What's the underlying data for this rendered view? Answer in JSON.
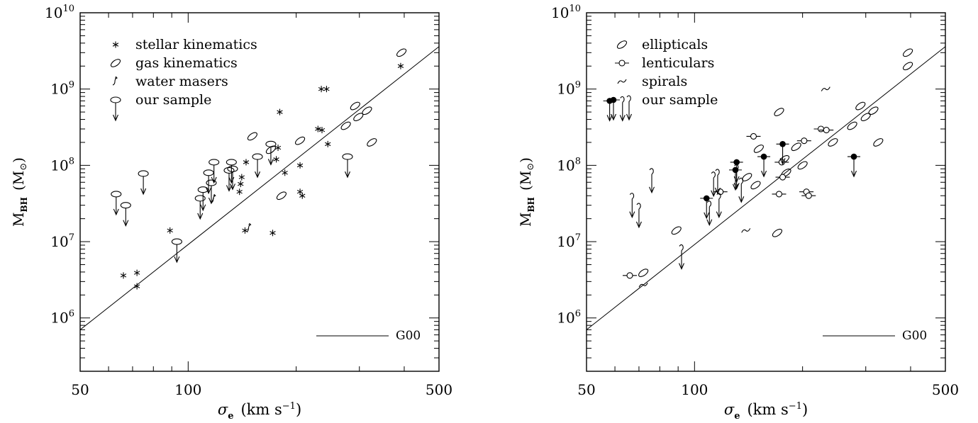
{
  "chart_data": [
    {
      "type": "scatter",
      "xlabel": {
        "symbol": "σ",
        "sub": "e",
        "unit": "(km s",
        "sup": "−1",
        "close": ")"
      },
      "ylabel": {
        "main": "M",
        "sub": "BH",
        "unit": "(M",
        "sun": "⊙",
        "close": ")"
      },
      "x_scale": "log",
      "y_scale": "log",
      "xlim": [
        50,
        500
      ],
      "ylim": [
        200000,
        10000000000
      ],
      "x_tick_labels": [
        "50",
        "100",
        "500"
      ],
      "y_tick_labels": [
        {
          "base": "10",
          "exp": "6",
          "value": 1000000
        },
        {
          "base": "10",
          "exp": "7",
          "value": 10000000
        },
        {
          "base": "10",
          "exp": "8",
          "value": 100000000
        },
        {
          "base": "10",
          "exp": "9",
          "value": 1000000000
        },
        {
          "base": "10",
          "exp": "10",
          "value": 10000000000
        }
      ],
      "fit_line": {
        "label": "G00",
        "x": [
          50,
          500
        ],
        "y": [
          700000,
          3600000000
        ]
      },
      "legend": {
        "placement": "top-left",
        "entries": [
          {
            "marker": "star",
            "label": "stellar kinematics"
          },
          {
            "marker": "ellipse",
            "label": "gas kinematics"
          },
          {
            "marker": "maser",
            "label": "water masers"
          },
          {
            "marker": "upper-limit",
            "label": "our sample"
          }
        ]
      },
      "series": [
        {
          "marker": "star",
          "points": [
            [
              66,
              3600000
            ],
            [
              72,
              3900000
            ],
            [
              72,
              2600000
            ],
            [
              89,
              14000000
            ],
            [
              144,
              14000000
            ],
            [
              172,
              13000000
            ],
            [
              139,
              45000000
            ],
            [
              140,
              57000000
            ],
            [
              141,
              70000000
            ],
            [
              145,
              110000000
            ],
            [
              176,
              120000000
            ],
            [
              178,
              170000000
            ],
            [
              180,
              500000000
            ],
            [
              186,
              80000000
            ],
            [
              205,
              100000000
            ],
            [
              205,
              45000000
            ],
            [
              208,
              40000000
            ],
            [
              230,
              300000000
            ],
            [
              236,
              290000000
            ],
            [
              235,
              1000000000
            ],
            [
              243,
              1000000000
            ],
            [
              245,
              190000000
            ],
            [
              391,
              2000000000
            ]
          ]
        },
        {
          "marker": "ellipse",
          "points": [
            [
              151,
              240000000
            ],
            [
              205,
              210000000
            ],
            [
              170,
              160000000
            ],
            [
              182,
              40000000
            ],
            [
              275,
              330000000
            ],
            [
              292,
              600000000
            ],
            [
              298,
              430000000
            ],
            [
              315,
              520000000
            ],
            [
              325,
              200000000
            ],
            [
              393,
              3000000000
            ]
          ]
        },
        {
          "marker": "maser",
          "points": [
            [
              148,
              15000000
            ],
            [
              118,
              36000000
            ]
          ]
        },
        {
          "marker": "upper-limit",
          "points": [
            [
              63,
              42000000
            ],
            [
              67,
              30000000
            ],
            [
              75,
              78000000
            ],
            [
              93,
              10000000
            ],
            [
              108,
              37000000
            ],
            [
              110,
              48000000
            ],
            [
              114,
              80000000
            ],
            [
              116,
              59000000
            ],
            [
              118,
              110000000
            ],
            [
              130,
              86000000
            ],
            [
              132,
              110000000
            ],
            [
              133,
              90000000
            ],
            [
              156,
              130000000
            ],
            [
              170,
              190000000
            ],
            [
              278,
              130000000
            ]
          ]
        }
      ]
    },
    {
      "type": "scatter",
      "xlabel": {
        "symbol": "σ",
        "sub": "e",
        "unit": "(km s",
        "sup": "−1",
        "close": ")"
      },
      "ylabel": {
        "main": "M",
        "sub": "BH",
        "unit": "(M",
        "sun": "⊙",
        "close": ")"
      },
      "x_scale": "log",
      "y_scale": "log",
      "xlim": [
        50,
        500
      ],
      "ylim": [
        200000,
        10000000000
      ],
      "x_tick_labels": [
        "50",
        "100",
        "500"
      ],
      "y_tick_labels": [
        {
          "base": "10",
          "exp": "6",
          "value": 1000000
        },
        {
          "base": "10",
          "exp": "7",
          "value": 10000000
        },
        {
          "base": "10",
          "exp": "8",
          "value": 100000000
        },
        {
          "base": "10",
          "exp": "9",
          "value": 1000000000
        },
        {
          "base": "10",
          "exp": "10",
          "value": 10000000000
        }
      ],
      "fit_line": {
        "label": "G00",
        "x": [
          50,
          500
        ],
        "y": [
          700000,
          3600000000
        ]
      },
      "legend": {
        "placement": "top-left",
        "entries": [
          {
            "marker": "ellipse",
            "label": "ellipticals"
          },
          {
            "marker": "circle-bar",
            "label": "lenticulars"
          },
          {
            "marker": "spiral",
            "label": "spirals"
          },
          {
            "marker": "upper-limit-pair",
            "label": "our sample"
          }
        ]
      },
      "series": [
        {
          "marker": "ellipse",
          "points": [
            [
              89,
              14000000
            ],
            [
              72,
              3900000
            ],
            [
              151,
              165000000
            ],
            [
              172,
              500000000
            ],
            [
              178,
              120000000
            ],
            [
              180,
              80000000
            ],
            [
              192,
              175000000
            ],
            [
              170,
              13000000
            ],
            [
              243,
              200000000
            ],
            [
              275,
              330000000
            ],
            [
              290,
              600000000
            ],
            [
              300,
              430000000
            ],
            [
              315,
              520000000
            ],
            [
              325,
              200000000
            ],
            [
              393,
              3000000000
            ],
            [
              393,
              2000000000
            ],
            [
              200,
              100000000
            ],
            [
              140,
              70000000
            ],
            [
              148,
              55000000
            ]
          ]
        },
        {
          "marker": "circle-bar",
          "points": [
            [
              66,
              3600000
            ],
            [
              118,
              45000000
            ],
            [
              146,
              240000000
            ],
            [
              172,
              42000000
            ],
            [
              202,
              210000000
            ],
            [
              205,
              45000000
            ],
            [
              208,
              40000000
            ],
            [
              225,
              300000000
            ],
            [
              233,
              290000000
            ],
            [
              175,
              110000000
            ],
            [
              176,
              70000000
            ]
          ]
        },
        {
          "marker": "spiral",
          "points": [
            [
              139,
              14000000
            ],
            [
              232,
              1000000000
            ],
            [
              72,
              2700000
            ]
          ]
        },
        {
          "marker": "upper-limit-filled",
          "points": [
            [
              58,
              700000000
            ],
            [
              108,
              37000000
            ],
            [
              130,
              87000000
            ],
            [
              131,
              110000000
            ],
            [
              156,
              130000000
            ],
            [
              176,
              190000000
            ],
            [
              278,
              130000000
            ]
          ]
        },
        {
          "marker": "upper-limit-spiral",
          "points": [
            [
              63,
              700000000
            ],
            [
              67,
              38000000
            ],
            [
              70,
              28000000
            ],
            [
              76,
              80000000
            ],
            [
              92,
              8000000
            ],
            [
              110,
              30000000
            ],
            [
              113,
              72000000
            ],
            [
              116,
              78000000
            ],
            [
              117,
              38000000
            ],
            [
              131,
              90000000
            ],
            [
              135,
              60000000
            ]
          ]
        }
      ]
    }
  ]
}
